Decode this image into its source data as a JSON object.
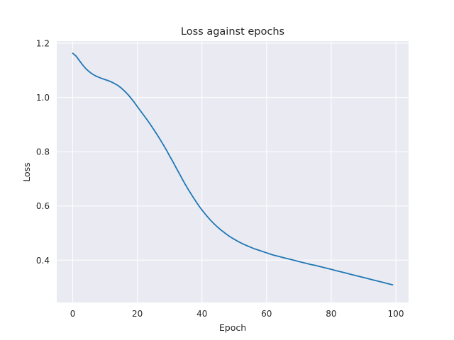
{
  "chart_data": {
    "type": "line",
    "title": "Loss against epochs",
    "xlabel": "Epoch",
    "ylabel": "Loss",
    "xlim": [
      -4.95,
      103.95
    ],
    "ylim": [
      0.244,
      1.208
    ],
    "xticks": [
      0,
      20,
      40,
      60,
      80,
      100
    ],
    "yticks": [
      0.4,
      0.6,
      0.8,
      1.0,
      1.2
    ],
    "xtick_labels": [
      "0",
      "20",
      "40",
      "60",
      "80",
      "100"
    ],
    "ytick_labels": [
      "0.4",
      "0.6",
      "0.8",
      "1.0",
      "1.2"
    ],
    "grid": true,
    "colors": {
      "background": "#eaeaf2",
      "grid": "#ffffff",
      "line": "#1f77b4"
    },
    "series": [
      {
        "color": "#1f77b4",
        "x": [
          0,
          1,
          2,
          3,
          4,
          5,
          6,
          7,
          8,
          9,
          10,
          11,
          12,
          13,
          14,
          15,
          16,
          17,
          18,
          19,
          20,
          21,
          22,
          23,
          24,
          25,
          26,
          27,
          28,
          29,
          30,
          31,
          32,
          33,
          34,
          35,
          36,
          37,
          38,
          39,
          40,
          41,
          42,
          43,
          44,
          45,
          46,
          47,
          48,
          49,
          50,
          51,
          52,
          53,
          54,
          55,
          56,
          57,
          58,
          59,
          60,
          61,
          62,
          63,
          64,
          65,
          66,
          67,
          68,
          69,
          70,
          71,
          72,
          73,
          74,
          75,
          76,
          77,
          78,
          79,
          80,
          81,
          82,
          83,
          84,
          85,
          86,
          87,
          88,
          89,
          90,
          91,
          92,
          93,
          94,
          95,
          96,
          97,
          98,
          99
        ],
        "y": [
          1.163,
          1.153,
          1.137,
          1.121,
          1.107,
          1.096,
          1.087,
          1.08,
          1.075,
          1.07,
          1.066,
          1.062,
          1.057,
          1.051,
          1.044,
          1.035,
          1.024,
          1.012,
          0.998,
          0.983,
          0.966,
          0.95,
          0.934,
          0.918,
          0.901,
          0.883,
          0.865,
          0.846,
          0.826,
          0.806,
          0.784,
          0.763,
          0.741,
          0.719,
          0.697,
          0.676,
          0.656,
          0.637,
          0.619,
          0.601,
          0.585,
          0.57,
          0.556,
          0.543,
          0.531,
          0.52,
          0.51,
          0.501,
          0.492,
          0.484,
          0.477,
          0.47,
          0.464,
          0.458,
          0.453,
          0.448,
          0.443,
          0.439,
          0.435,
          0.431,
          0.427,
          0.423,
          0.419,
          0.416,
          0.413,
          0.41,
          0.407,
          0.404,
          0.401,
          0.398,
          0.395,
          0.392,
          0.389,
          0.386,
          0.383,
          0.381,
          0.378,
          0.375,
          0.372,
          0.369,
          0.366,
          0.363,
          0.36,
          0.357,
          0.354,
          0.351,
          0.348,
          0.345,
          0.342,
          0.339,
          0.336,
          0.333,
          0.33,
          0.327,
          0.324,
          0.321,
          0.318,
          0.315,
          0.312,
          0.309
        ]
      }
    ]
  }
}
